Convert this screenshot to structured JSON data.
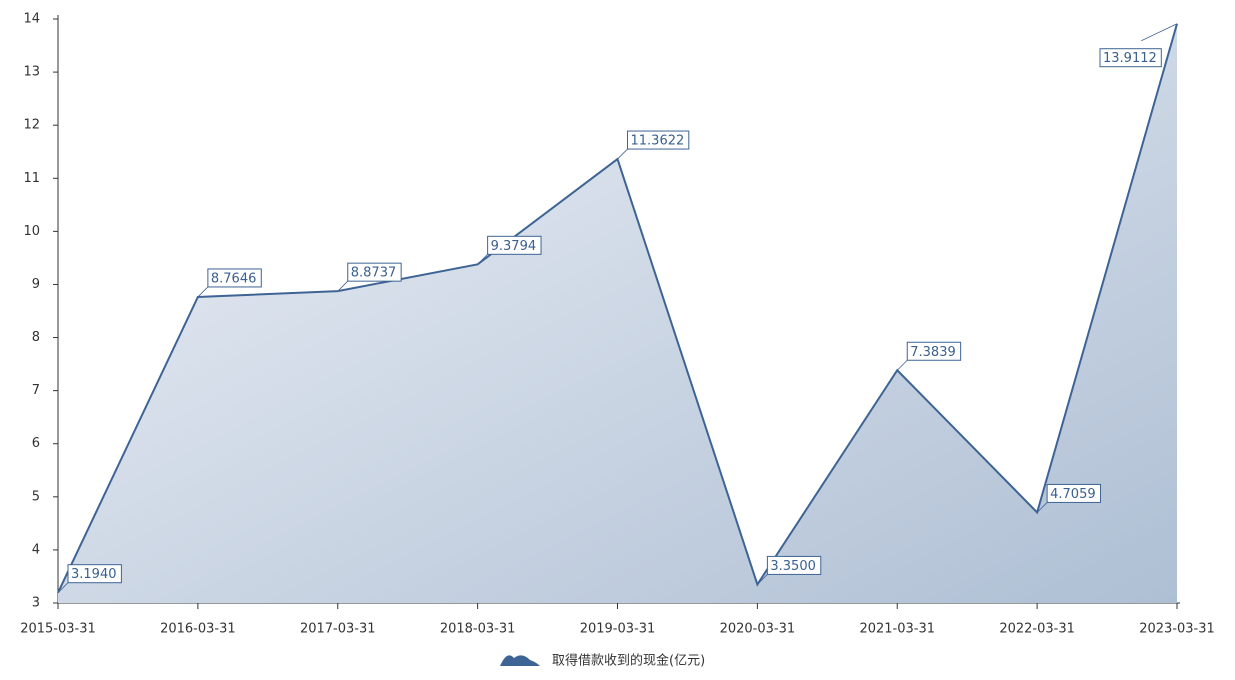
{
  "chart_data": {
    "type": "area",
    "categories": [
      "2015-03-31",
      "2016-03-31",
      "2017-03-31",
      "2018-03-31",
      "2019-03-31",
      "2020-03-31",
      "2021-03-31",
      "2022-03-31",
      "2023-03-31"
    ],
    "series": [
      {
        "name": "取得借款收到的现金(亿元)",
        "color": "#3d6494",
        "values": [
          3.194,
          8.7646,
          8.8737,
          9.3794,
          11.3622,
          3.35,
          7.3839,
          4.7059,
          13.9112
        ],
        "value_labels": [
          "3.1940",
          "8.7646",
          "8.8737",
          "9.3794",
          "11.3622",
          "3.3500",
          "7.3839",
          "4.7059",
          "13.9112"
        ]
      }
    ],
    "ylim": [
      3,
      14
    ],
    "yticks": [
      3,
      4,
      5,
      6,
      7,
      8,
      9,
      10,
      11,
      12,
      13,
      14
    ]
  }
}
